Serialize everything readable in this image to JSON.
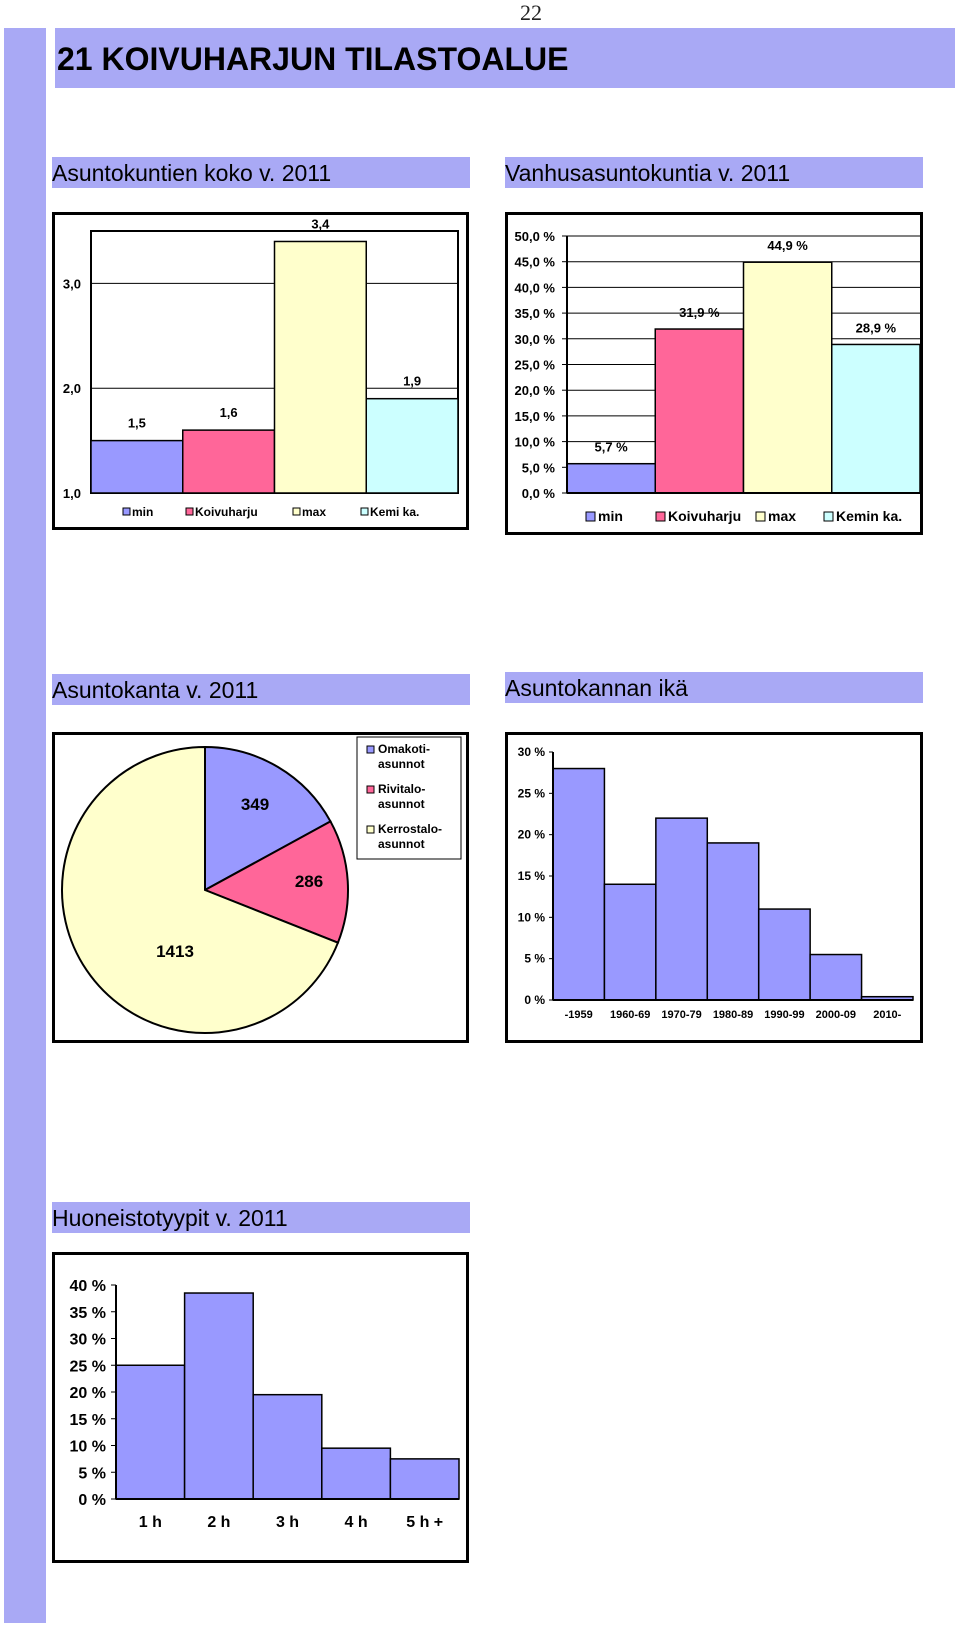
{
  "page": {
    "page_number": "22",
    "title": "21  KOIVUHARJUN TILASTOALUE"
  },
  "sections": {
    "household_size": "Asuntokuntien koko v. 2011",
    "elderly_households": "Vanhusasuntokuntia v. 2011",
    "housing_stock": "Asuntokanta v. 2011",
    "housing_age": "Asuntokannan ikä",
    "apartment_types": "Huoneistotyypit v. 2011"
  },
  "chart_data": [
    {
      "id": "household_size",
      "type": "bar",
      "categories": [
        "min",
        "Koivuharju",
        "max",
        "Kemi ka."
      ],
      "values": [
        1.5,
        1.6,
        3.4,
        1.9
      ],
      "value_labels": [
        "1,5",
        "1,6",
        "3,4",
        "1,9"
      ],
      "colors": [
        "#9999ff",
        "#ff6699",
        "#ffffcc",
        "#ccffff"
      ],
      "ylim": [
        1.0,
        3.5
      ],
      "yticks": [
        1.0,
        2.0,
        3.0
      ],
      "ytick_labels": [
        "1,0",
        "2,0",
        "3,0"
      ],
      "legend_position": "bottom",
      "grid": true
    },
    {
      "id": "elderly_households",
      "type": "bar",
      "categories": [
        "min",
        "Koivuharju",
        "max",
        "Kemin ka."
      ],
      "values": [
        5.7,
        31.9,
        44.9,
        28.9
      ],
      "value_labels": [
        "5,7 %",
        "31,9 %",
        "44,9 %",
        "28,9 %"
      ],
      "colors": [
        "#9999ff",
        "#ff6699",
        "#ffffcc",
        "#ccffff"
      ],
      "ylim": [
        0,
        50
      ],
      "yticks": [
        0,
        5,
        10,
        15,
        20,
        25,
        30,
        35,
        40,
        45,
        50
      ],
      "ytick_labels": [
        "0,0 %",
        "5,0 %",
        "10,0 %",
        "15,0 %",
        "20,0 %",
        "25,0 %",
        "30,0 %",
        "35,0 %",
        "40,0 %",
        "45,0 %",
        "50,0 %"
      ],
      "legend_position": "bottom",
      "grid": true
    },
    {
      "id": "housing_stock",
      "type": "pie",
      "labels": [
        "Omakoti-asunnot",
        "Rivitalo-asunnot",
        "Kerrostalo-asunnot"
      ],
      "legend_lines": [
        [
          "Omakoti-",
          "asunnot"
        ],
        [
          "Rivitalo-",
          "asunnot"
        ],
        [
          "Kerrostalo-",
          "asunnot"
        ]
      ],
      "values": [
        349,
        286,
        1413
      ],
      "value_labels": [
        "349",
        "286",
        "1413"
      ],
      "colors": [
        "#9999ff",
        "#ff6699",
        "#ffffcc"
      ],
      "legend_position": "top-right"
    },
    {
      "id": "housing_age",
      "type": "bar",
      "categories": [
        "-1959",
        "1960-69",
        "1970-79",
        "1980-89",
        "1990-99",
        "2000-09",
        "2010-"
      ],
      "values": [
        28,
        14,
        22,
        19,
        11,
        5.5,
        0.4
      ],
      "color": "#9999ff",
      "ylim": [
        0,
        30
      ],
      "yticks": [
        0,
        5,
        10,
        15,
        20,
        25,
        30
      ],
      "ytick_labels": [
        "0 %",
        "5 %",
        "10 %",
        "15 %",
        "20 %",
        "25 %",
        "30 %"
      ],
      "grid": false
    },
    {
      "id": "apartment_types",
      "type": "bar",
      "categories": [
        "1 h",
        "2 h",
        "3 h",
        "4 h",
        "5 h +"
      ],
      "values": [
        25,
        38.5,
        19.5,
        9.5,
        7.5
      ],
      "color": "#9999ff",
      "ylim": [
        0,
        40
      ],
      "yticks": [
        0,
        5,
        10,
        15,
        20,
        25,
        30,
        35,
        40
      ],
      "ytick_labels": [
        "0 %",
        "5 %",
        "10 %",
        "15 %",
        "20 %",
        "25 %",
        "30 %",
        "35 %",
        "40 %"
      ],
      "grid": false
    }
  ]
}
